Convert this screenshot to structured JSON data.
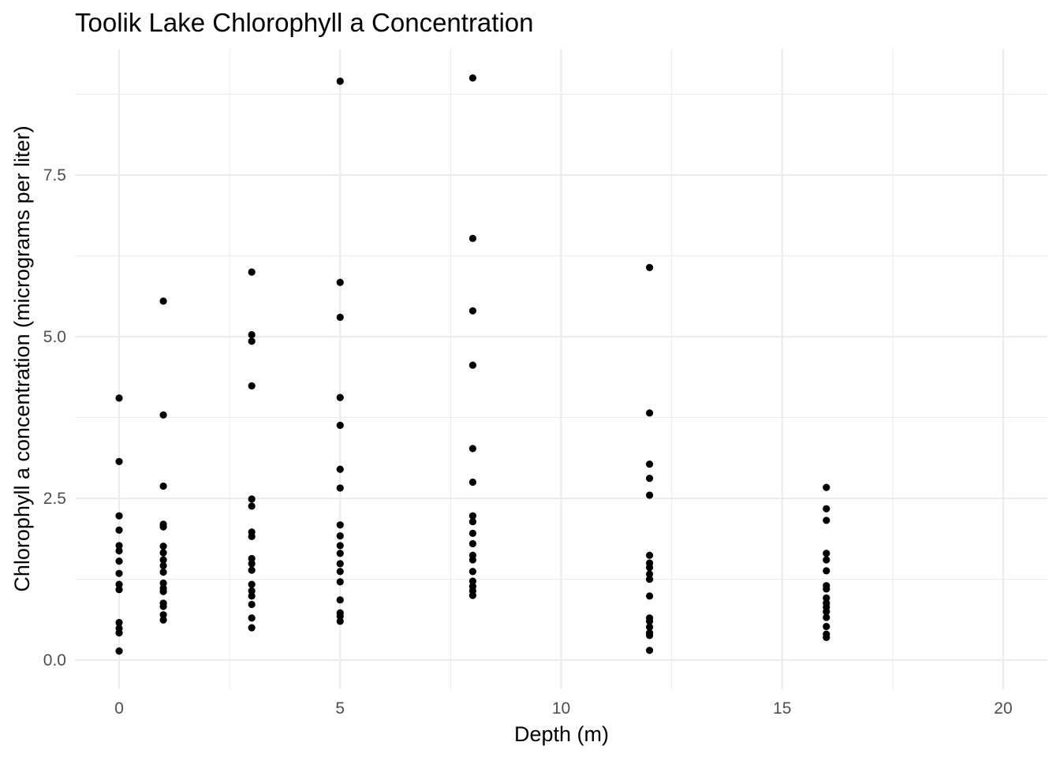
{
  "chart_data": {
    "type": "scatter",
    "title": "Toolik Lake Chlorophyll a Concentration",
    "xlabel": "Depth (m)",
    "ylabel": "Chlorophyll a concentration (micrograms per liter)",
    "xlim": [
      -1,
      21
    ],
    "ylim": [
      -0.45,
      9.45
    ],
    "x_ticks": [
      0,
      5,
      10,
      15,
      20
    ],
    "x_tick_labels": [
      "0",
      "5",
      "10",
      "15",
      "20"
    ],
    "x_minor_ticks": [
      2.5,
      7.5,
      12.5,
      17.5
    ],
    "y_ticks": [
      0,
      2.5,
      5,
      7.5
    ],
    "y_tick_labels": [
      "0.0",
      "2.5",
      "5.0",
      "7.5"
    ],
    "y_minor_ticks": [
      1.25,
      3.75,
      6.25,
      8.75
    ],
    "grid": true,
    "legend": "none",
    "point_color": "#000000",
    "grid_color": "#ebebeb",
    "series": [
      {
        "points": [
          [
            0,
            4.05
          ],
          [
            0,
            3.07
          ],
          [
            0,
            2.23
          ],
          [
            0,
            2.01
          ],
          [
            0,
            1.77
          ],
          [
            0,
            1.69
          ],
          [
            0,
            1.53
          ],
          [
            0,
            1.34
          ],
          [
            0,
            1.17
          ],
          [
            0,
            1.09
          ],
          [
            0,
            0.58
          ],
          [
            0,
            0.49
          ],
          [
            0,
            0.42
          ],
          [
            0,
            0.14
          ],
          [
            1,
            5.55
          ],
          [
            1,
            3.79
          ],
          [
            1,
            2.69
          ],
          [
            1,
            2.1
          ],
          [
            1,
            2.06
          ],
          [
            1,
            1.76
          ],
          [
            1,
            1.66
          ],
          [
            1,
            1.55
          ],
          [
            1,
            1.46
          ],
          [
            1,
            1.36
          ],
          [
            1,
            1.19
          ],
          [
            1,
            1.11
          ],
          [
            1,
            1.06
          ],
          [
            1,
            0.88
          ],
          [
            1,
            0.83
          ],
          [
            1,
            0.7
          ],
          [
            1,
            0.62
          ],
          [
            3,
            6.0
          ],
          [
            3,
            5.03
          ],
          [
            3,
            4.93
          ],
          [
            3,
            4.24
          ],
          [
            3,
            2.49
          ],
          [
            3,
            2.38
          ],
          [
            3,
            1.98
          ],
          [
            3,
            1.91
          ],
          [
            3,
            1.57
          ],
          [
            3,
            1.49
          ],
          [
            3,
            1.39
          ],
          [
            3,
            1.17
          ],
          [
            3,
            1.07
          ],
          [
            3,
            0.99
          ],
          [
            3,
            0.86
          ],
          [
            3,
            0.65
          ],
          [
            3,
            0.5
          ],
          [
            5,
            8.95
          ],
          [
            5,
            5.84
          ],
          [
            5,
            5.3
          ],
          [
            5,
            4.06
          ],
          [
            5,
            3.63
          ],
          [
            5,
            2.95
          ],
          [
            5,
            2.66
          ],
          [
            5,
            2.09
          ],
          [
            5,
            1.92
          ],
          [
            5,
            1.77
          ],
          [
            5,
            1.65
          ],
          [
            5,
            1.49
          ],
          [
            5,
            1.37
          ],
          [
            5,
            1.21
          ],
          [
            5,
            0.93
          ],
          [
            5,
            0.73
          ],
          [
            5,
            0.68
          ],
          [
            5,
            0.6
          ],
          [
            8,
            9.0
          ],
          [
            8,
            6.52
          ],
          [
            8,
            5.4
          ],
          [
            8,
            4.56
          ],
          [
            8,
            3.27
          ],
          [
            8,
            2.75
          ],
          [
            8,
            2.23
          ],
          [
            8,
            2.14
          ],
          [
            8,
            1.96
          ],
          [
            8,
            1.8
          ],
          [
            8,
            1.62
          ],
          [
            8,
            1.55
          ],
          [
            8,
            1.37
          ],
          [
            8,
            1.22
          ],
          [
            8,
            1.14
          ],
          [
            8,
            1.07
          ],
          [
            8,
            1.0
          ],
          [
            12,
            6.07
          ],
          [
            12,
            3.82
          ],
          [
            12,
            3.03
          ],
          [
            12,
            2.81
          ],
          [
            12,
            2.55
          ],
          [
            12,
            1.62
          ],
          [
            12,
            1.5
          ],
          [
            12,
            1.43
          ],
          [
            12,
            1.33
          ],
          [
            12,
            1.25
          ],
          [
            12,
            0.99
          ],
          [
            12,
            0.65
          ],
          [
            12,
            0.6
          ],
          [
            12,
            0.51
          ],
          [
            12,
            0.42
          ],
          [
            12,
            0.38
          ],
          [
            12,
            0.15
          ],
          [
            16,
            2.67
          ],
          [
            16,
            2.34
          ],
          [
            16,
            2.16
          ],
          [
            16,
            1.65
          ],
          [
            16,
            1.55
          ],
          [
            16,
            1.38
          ],
          [
            16,
            1.15
          ],
          [
            16,
            1.1
          ],
          [
            16,
            0.96
          ],
          [
            16,
            0.88
          ],
          [
            16,
            0.82
          ],
          [
            16,
            0.75
          ],
          [
            16,
            0.66
          ],
          [
            16,
            0.52
          ],
          [
            16,
            0.4
          ],
          [
            16,
            0.35
          ]
        ]
      }
    ]
  }
}
